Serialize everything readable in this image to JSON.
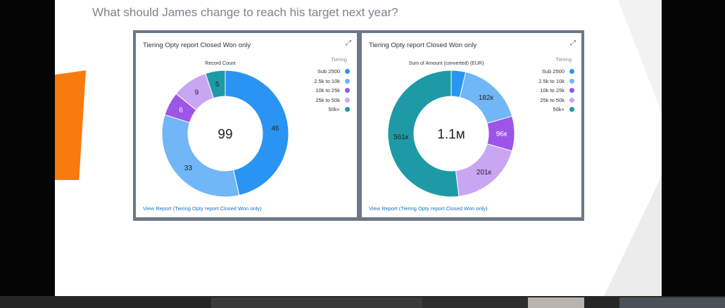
{
  "question": "What should James change to reach his target next year?",
  "colors": {
    "orange": "#f77b0e",
    "link": "#1b6fc4",
    "frame": "#6c7888"
  },
  "charts": [
    {
      "title": "Tiering Opty report Closed Won only",
      "metric_label": "Record Count",
      "center_value": "99",
      "legend_title": "Tiering",
      "view_link": "View Report (Tiering Opty report Closed Won only)"
    },
    {
      "title": "Tiering Opty report Closed Won only",
      "metric_label": "Sum of Amount (converted) (EUR)",
      "center_value": "1.1м",
      "legend_title": "Tiering",
      "view_link": "View Report (Tiering Opty report Closed Won only)"
    }
  ],
  "chart_data": [
    {
      "type": "pie",
      "title": "Tiering Opty report Closed Won only",
      "metric": "Record Count",
      "total_label": "99",
      "legend_title": "Tiering",
      "categories": [
        "Sub 2500",
        "2.5k to 10k",
        "10k to 25k",
        "25k to 50k",
        "50k+"
      ],
      "values": [
        46,
        33,
        6,
        9,
        5
      ],
      "labels": [
        "46",
        "33",
        "6",
        "9",
        "5"
      ],
      "colors": [
        "#2a94f4",
        "#71b6f6",
        "#9c55e8",
        "#c9a6f2",
        "#1e9aa6"
      ]
    },
    {
      "type": "pie",
      "title": "Tiering Opty report Closed Won only",
      "metric": "Sum of Amount (converted) (EUR)",
      "total_label": "1.1м",
      "legend_title": "Tiering",
      "categories": [
        "Sub 2500",
        "2.5k to 10k",
        "10k to 25k",
        "25k to 50k",
        "50k+"
      ],
      "values": [
        40,
        182,
        96,
        201,
        561
      ],
      "labels": [
        "",
        "182к",
        "96к",
        "201к",
        "561к"
      ],
      "colors": [
        "#2a94f4",
        "#71b6f6",
        "#9c55e8",
        "#c9a6f2",
        "#1e9aa6"
      ]
    }
  ]
}
